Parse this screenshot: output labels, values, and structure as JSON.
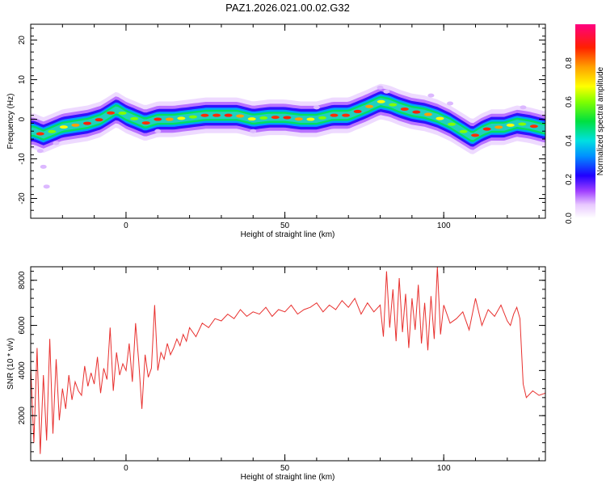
{
  "title": "PAZ1.2026.021.00.02.G32",
  "chart_data": [
    {
      "type": "heatmap",
      "xlabel": "Height of straight line (km)",
      "ylabel": "Frequency (Hz)",
      "xlim": [
        -30,
        132
      ],
      "ylim": [
        -25,
        24
      ],
      "xticks": [
        0,
        50,
        100
      ],
      "xtick_labels": [
        "0",
        "50",
        "100"
      ],
      "yticks": [
        -20,
        -10,
        0,
        10,
        20
      ],
      "ytick_labels": [
        "-20",
        "-10",
        "0",
        "10",
        "20"
      ],
      "colorbar": {
        "label": "Normalized spectral amplitude",
        "range": [
          0,
          1
        ],
        "ticks": [
          0.0,
          0.2,
          0.4,
          0.6,
          0.8
        ],
        "tick_labels": [
          "0.0",
          "0.2",
          "0.4",
          "0.6",
          "0.8"
        ]
      },
      "ridge": {
        "x": [
          -29,
          -26,
          -23,
          -20,
          -16,
          -12,
          -8,
          -5,
          -3,
          0,
          3,
          6,
          10,
          15,
          20,
          25,
          30,
          35,
          40,
          45,
          50,
          55,
          60,
          65,
          70,
          73,
          76,
          80,
          83,
          86,
          90,
          94,
          98,
          102,
          106,
          109,
          112,
          115,
          119,
          123,
          127,
          132
        ],
        "y": [
          -3,
          -4,
          -3,
          -2,
          -1.5,
          -1,
          0,
          1.5,
          2.5,
          1,
          0,
          -1,
          0,
          0,
          0.5,
          1,
          1,
          1,
          0,
          0.5,
          0.5,
          0,
          0,
          1,
          1,
          2,
          3,
          4.5,
          4,
          3,
          2,
          1.5,
          0.5,
          -1,
          -3,
          -4.5,
          -3,
          -2,
          -2,
          -1,
          -1.5,
          -2.5
        ]
      }
    },
    {
      "type": "line",
      "xlabel": "Height of straight line (km)",
      "ylabel": "SNR (10 * v/v)",
      "xlim": [
        -30,
        132
      ],
      "ylim": [
        0,
        8600
      ],
      "xticks": [
        0,
        50,
        100
      ],
      "xtick_labels": [
        "0",
        "50",
        "100"
      ],
      "yticks": [
        2000,
        4000,
        6000,
        8000
      ],
      "ytick_labels": [
        "2000",
        "4000",
        "6000",
        "8000"
      ],
      "series": [
        {
          "color": "#e8302e",
          "x": [
            -30,
            -29,
            -28,
            -27,
            -26,
            -25,
            -24,
            -23,
            -22,
            -21,
            -20,
            -19,
            -18,
            -17,
            -16,
            -15,
            -14,
            -13,
            -12,
            -11,
            -10,
            -9,
            -8,
            -7,
            -6,
            -5,
            -4,
            -3,
            -2,
            -1,
            0,
            1,
            2,
            3,
            4,
            5,
            6,
            7,
            8,
            9,
            10,
            11,
            12,
            13,
            14,
            15,
            16,
            17,
            18,
            19,
            20,
            22,
            24,
            26,
            28,
            30,
            32,
            34,
            36,
            38,
            40,
            42,
            44,
            46,
            48,
            50,
            52,
            54,
            56,
            58,
            60,
            62,
            64,
            66,
            68,
            70,
            72,
            74,
            76,
            78,
            80,
            81,
            82,
            83,
            84,
            85,
            86,
            87,
            88,
            89,
            90,
            91,
            92,
            93,
            94,
            95,
            96,
            97,
            98,
            99,
            100,
            102,
            104,
            106,
            108,
            110,
            112,
            114,
            116,
            118,
            120,
            121,
            122,
            123,
            124,
            125,
            126,
            128,
            130,
            132
          ],
          "y": [
            4200,
            800,
            5000,
            300,
            3800,
            900,
            5400,
            1200,
            4500,
            1800,
            3200,
            2300,
            3800,
            2700,
            3500,
            3100,
            2900,
            4200,
            3300,
            3900,
            3400,
            4600,
            3000,
            4100,
            3600,
            5900,
            3100,
            4800,
            3800,
            4300,
            4000,
            5200,
            3500,
            6100,
            4400,
            2300,
            4700,
            3700,
            4100,
            6900,
            4000,
            4800,
            4500,
            5200,
            4700,
            5000,
            5400,
            5100,
            5600,
            5300,
            5900,
            5500,
            6100,
            5900,
            6300,
            6200,
            6500,
            6300,
            6700,
            6400,
            6600,
            6500,
            6800,
            6400,
            6700,
            6600,
            6900,
            6500,
            6700,
            6800,
            7000,
            6600,
            6900,
            6700,
            7100,
            6800,
            7200,
            6500,
            7000,
            6600,
            6900,
            5500,
            8400,
            5900,
            7600,
            5300,
            8100,
            5700,
            7400,
            5000,
            7200,
            5800,
            7800,
            5200,
            7000,
            4900,
            7300,
            5400,
            8600,
            5600,
            6900,
            6100,
            6300,
            6600,
            5800,
            7200,
            6000,
            6700,
            6400,
            6900,
            6200,
            6000,
            6500,
            6800,
            6300,
            3400,
            2800,
            3100,
            2900,
            3000
          ]
        }
      ]
    }
  ]
}
